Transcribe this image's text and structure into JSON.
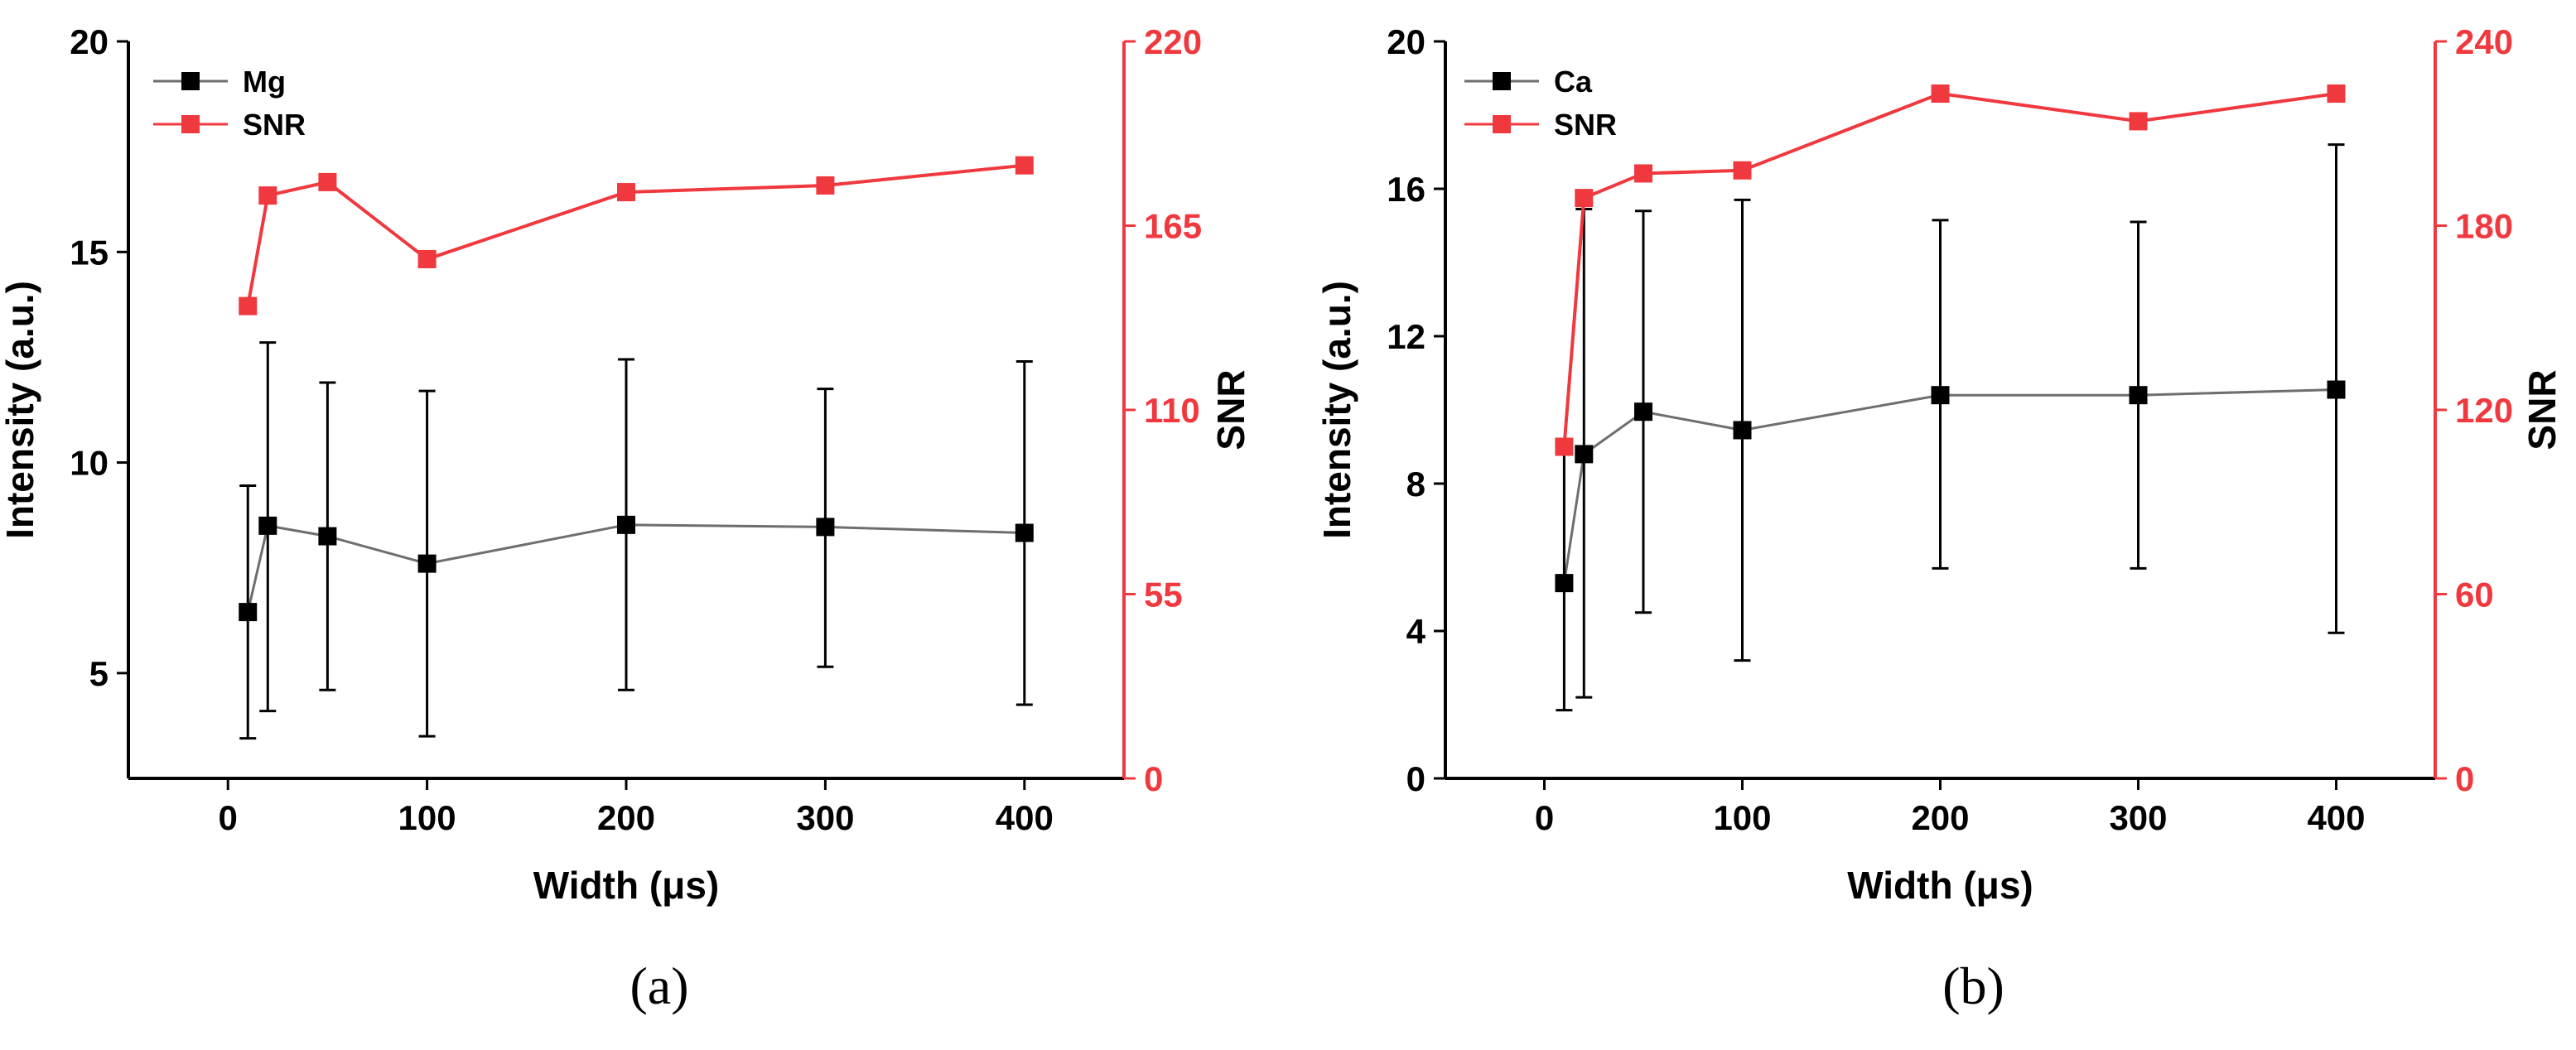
{
  "colors": {
    "intensity": "#000000",
    "intensity_line": "#6e6e6e",
    "snr": "#f0383f"
  },
  "chart_data": [
    {
      "type": "line",
      "panel_label": "(a)",
      "xlabel": "Width (μs)",
      "ylabel": "Intensity (a.u.)",
      "y2label": "SNR",
      "xlim": [
        -50,
        450
      ],
      "ylim": [
        2.5,
        20
      ],
      "y2lim": [
        0,
        220
      ],
      "xticks": [
        0,
        100,
        200,
        300,
        400
      ],
      "yticks": [
        5,
        10,
        15,
        20
      ],
      "y2ticks": [
        0,
        55,
        110,
        165,
        220
      ],
      "legend_position": "top-left",
      "series": [
        {
          "name": "Mg",
          "axis": "left",
          "x": [
            10,
            20,
            50,
            100,
            200,
            300,
            400
          ],
          "values": [
            6.45,
            8.5,
            8.25,
            7.6,
            8.52,
            8.47,
            8.33
          ],
          "error_lower": [
            3.45,
            4.1,
            4.6,
            3.5,
            4.6,
            5.15,
            4.25
          ],
          "error_upper": [
            9.45,
            12.85,
            11.9,
            11.7,
            12.45,
            11.75,
            12.4
          ]
        },
        {
          "name": "SNR",
          "axis": "right",
          "x": [
            10,
            20,
            50,
            100,
            200,
            300,
            400
          ],
          "values": [
            141,
            174,
            178,
            155,
            175,
            177,
            183
          ]
        }
      ]
    },
    {
      "type": "line",
      "panel_label": "(b)",
      "xlabel": "Width (μs)",
      "ylabel": "Intensity (a.u.)",
      "y2label": "SNR",
      "xlim": [
        -50,
        450
      ],
      "ylim": [
        0,
        20
      ],
      "y2lim": [
        0,
        240
      ],
      "xticks": [
        0,
        100,
        200,
        300,
        400
      ],
      "yticks": [
        0,
        4,
        8,
        12,
        16,
        20
      ],
      "y2ticks": [
        0,
        60,
        120,
        180,
        240
      ],
      "legend_position": "top-left",
      "series": [
        {
          "name": "Ca",
          "axis": "left",
          "x": [
            10,
            20,
            50,
            100,
            200,
            300,
            400
          ],
          "values": [
            5.3,
            8.8,
            9.95,
            9.45,
            10.4,
            10.4,
            10.55
          ],
          "error_lower": [
            1.85,
            2.2,
            4.5,
            3.2,
            5.7,
            5.7,
            3.95
          ],
          "error_upper": [
            9.0,
            15.45,
            15.4,
            15.7,
            15.15,
            15.1,
            17.2
          ]
        },
        {
          "name": "SNR",
          "axis": "right",
          "x": [
            10,
            20,
            50,
            100,
            200,
            300,
            400
          ],
          "values": [
            108,
            189,
            197,
            198,
            223,
            214,
            223
          ]
        }
      ]
    }
  ]
}
